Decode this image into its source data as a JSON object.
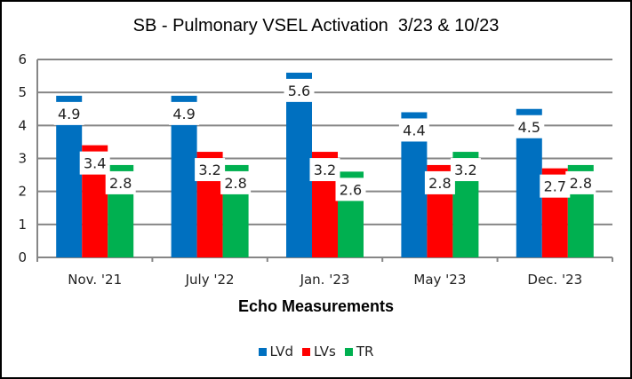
{
  "chart_data": {
    "type": "bar",
    "title": "SB - Pulmonary VSEL Activation  3/23 & 10/23",
    "xlabel": "Echo Measurements",
    "ylabel": "",
    "ylim": [
      0,
      6
    ],
    "yticks": [
      0,
      1,
      2,
      3,
      4,
      5,
      6
    ],
    "grid": true,
    "legend_position": "bottom",
    "categories": [
      "Nov. '21",
      "July '22",
      "Jan. '23",
      "May  '23",
      "Dec. '23"
    ],
    "series": [
      {
        "name": "LVd",
        "color": "#0070C0",
        "values": [
          4.9,
          4.9,
          5.6,
          4.4,
          4.5
        ]
      },
      {
        "name": "LVs",
        "color": "#FF0000",
        "values": [
          3.4,
          3.2,
          3.2,
          2.8,
          2.7
        ]
      },
      {
        "name": "TR",
        "color": "#00B050",
        "values": [
          2.8,
          2.8,
          2.6,
          3.2,
          2.8
        ]
      }
    ]
  }
}
